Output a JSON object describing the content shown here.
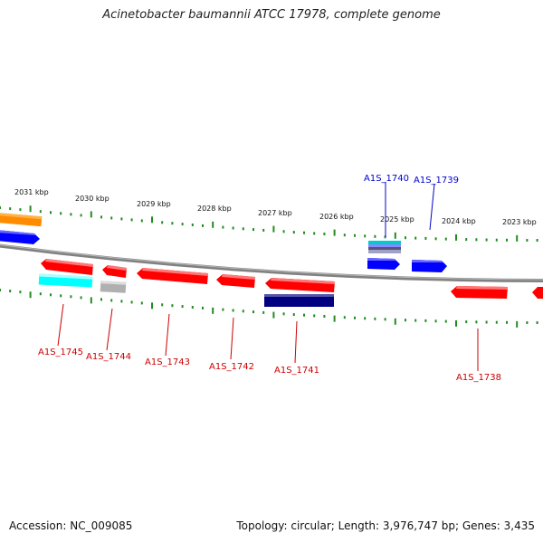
{
  "title": "Acinetobacter baumannii ATCC 17978, complete genome",
  "footer": {
    "accession": "Accession: NC_009085",
    "summary": "Topology: circular; Length: 3,976,747 bp; Genes: 3,435"
  },
  "colors": {
    "backbone": "#808080",
    "tick": "#228b22",
    "label_forward": "#0000cc",
    "label_reverse": "#cc0000",
    "cds_red": "#ff0000",
    "cds_blue": "#0000ff",
    "cds_navy": "#000080",
    "cds_cyan": "#00ffff",
    "cds_gray": "#b0b0b0",
    "cds_orange": "#ff8c00"
  },
  "kbp_labels": [
    "2031 kbp",
    "2030 kbp",
    "2029 kbp",
    "2028 kbp",
    "2027 kbp",
    "2026 kbp",
    "2025 kbp",
    "2024 kbp",
    "2023 kbp"
  ],
  "gene_labels": [
    {
      "text": "A1S_1740",
      "strand": "forward"
    },
    {
      "text": "A1S_1739",
      "strand": "forward"
    },
    {
      "text": "A1S_1745",
      "strand": "reverse"
    },
    {
      "text": "A1S_1744",
      "strand": "reverse"
    },
    {
      "text": "A1S_1743",
      "strand": "reverse"
    },
    {
      "text": "A1S_1742",
      "strand": "reverse"
    },
    {
      "text": "A1S_1741",
      "strand": "reverse"
    },
    {
      "text": "A1S_1738",
      "strand": "reverse"
    }
  ]
}
